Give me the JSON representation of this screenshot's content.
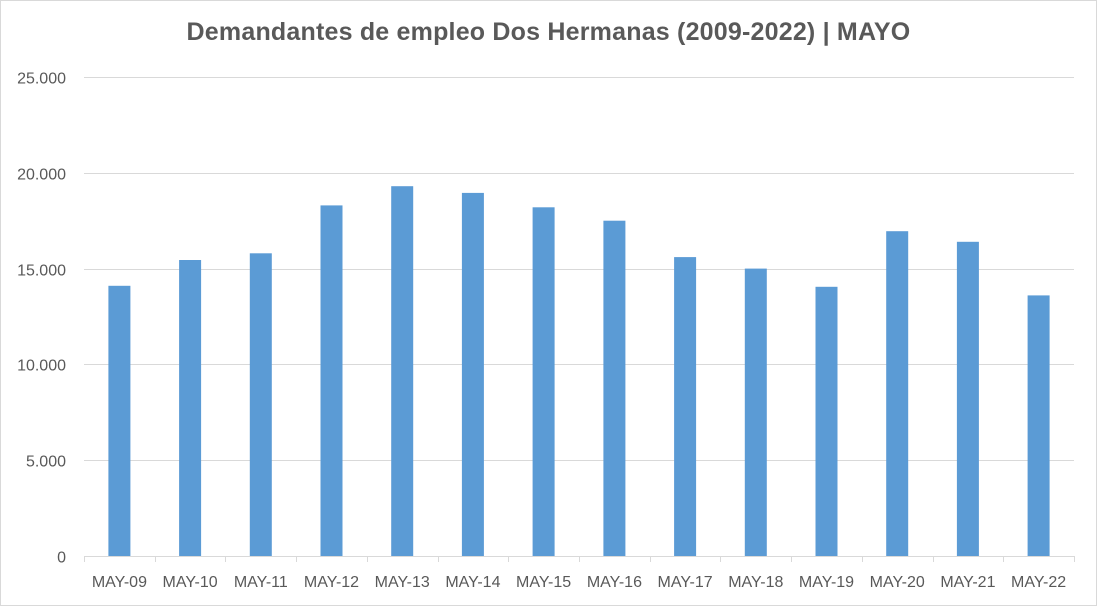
{
  "chart_data": {
    "type": "bar",
    "title": "Demandantes de empleo Dos Hermanas (2009-2022) | MAYO",
    "xlabel": "",
    "ylabel": "",
    "categories": [
      "MAY-09",
      "MAY-10",
      "MAY-11",
      "MAY-12",
      "MAY-13",
      "MAY-14",
      "MAY-15",
      "MAY-16",
      "MAY-17",
      "MAY-18",
      "MAY-19",
      "MAY-20",
      "MAY-21",
      "MAY-22"
    ],
    "values": [
      14100,
      15450,
      15800,
      18300,
      19300,
      18950,
      18200,
      17500,
      15600,
      15000,
      14050,
      16950,
      16400,
      13600
    ],
    "ylim": [
      0,
      25000
    ],
    "yticks": [
      0,
      5000,
      10000,
      15000,
      20000,
      25000
    ],
    "ytick_labels": [
      "0",
      "5.000",
      "10.000",
      "15.000",
      "20.000",
      "25.000"
    ],
    "grid": true,
    "legend": "none",
    "colors": {
      "bar": "#5b9bd5",
      "grid": "#d9d9d9",
      "text": "#595959"
    }
  }
}
